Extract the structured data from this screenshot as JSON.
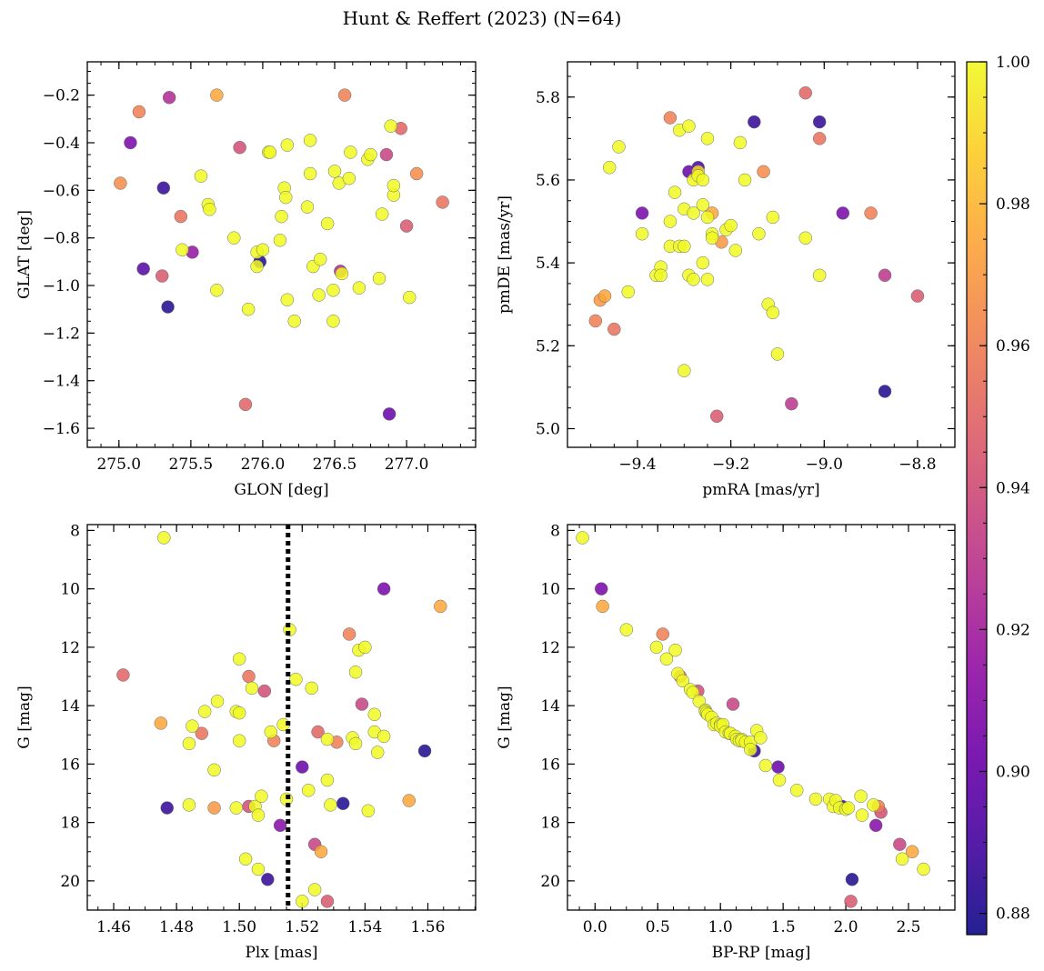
{
  "title": "Hunt & Reffert (2023) (N=64)",
  "colorbar": {
    "range": [
      0.877,
      1.0
    ],
    "ticks": [
      0.88,
      0.9,
      0.92,
      0.94,
      0.96,
      0.98,
      1.0
    ],
    "tick_labels": [
      "0.88",
      "0.90",
      "0.92",
      "0.94",
      "0.96",
      "0.98",
      "1.00"
    ],
    "colormap": "plasma"
  },
  "chart_data": [
    {
      "type": "scatter",
      "name": "sky",
      "xlabel": "GLON [deg]",
      "ylabel": "GLAT [deg]",
      "xlim": [
        274.78,
        277.48
      ],
      "ylim": [
        -1.68,
        -0.06
      ],
      "xticks": [
        275.0,
        275.5,
        276.0,
        276.5,
        277.0
      ],
      "xtick_labels": [
        "275.0",
        "275.5",
        "276.0",
        "276.5",
        "277.0"
      ],
      "yticks": [
        -1.6,
        -1.4,
        -1.2,
        -1.0,
        -0.8,
        -0.6,
        -0.4,
        -0.2
      ],
      "ytick_labels": [
        "−1.6",
        "−1.4",
        "−1.2",
        "−1.0",
        "−0.8",
        "−0.6",
        "−0.4",
        "−0.2"
      ],
      "x": [
        275.01,
        275.14,
        275.08,
        275.35,
        275.31,
        275.3,
        275.17,
        275.34,
        275.43,
        275.44,
        275.51,
        275.57,
        275.62,
        275.63,
        275.68,
        275.68,
        275.84,
        275.88,
        275.9,
        275.96,
        275.96,
        275.98,
        276.0,
        276.04,
        276.05,
        276.12,
        276.13,
        276.15,
        276.16,
        276.17,
        276.17,
        276.31,
        276.33,
        276.33,
        276.35,
        276.39,
        276.4,
        276.45,
        276.49,
        276.49,
        276.5,
        276.53,
        276.54,
        276.55,
        276.57,
        276.61,
        276.67,
        276.73,
        276.81,
        276.83,
        276.86,
        276.88,
        276.89,
        276.91,
        276.91,
        276.96,
        277.0,
        277.02,
        277.07,
        277.25,
        276.6,
        276.22,
        276.75,
        275.8
      ],
      "y": [
        -0.57,
        -0.27,
        -0.4,
        -0.21,
        -0.59,
        -0.96,
        -0.93,
        -1.09,
        -0.71,
        -0.85,
        -0.86,
        -0.54,
        -0.66,
        -0.68,
        -0.2,
        -1.02,
        -0.42,
        -1.5,
        -1.1,
        -0.92,
        -0.86,
        -0.9,
        -0.85,
        -0.44,
        -0.44,
        -0.81,
        -0.71,
        -0.59,
        -0.63,
        -0.41,
        -1.06,
        -0.67,
        -0.39,
        -0.53,
        -0.92,
        -1.04,
        -0.89,
        -0.74,
        -1.02,
        -1.15,
        -0.52,
        -0.57,
        -0.94,
        -0.95,
        -0.2,
        -0.44,
        -1.01,
        -0.47,
        -0.97,
        -0.7,
        -0.45,
        -1.54,
        -0.33,
        -0.62,
        -0.58,
        -0.34,
        -0.75,
        -1.05,
        -0.53,
        -0.65,
        -0.55,
        -1.15,
        -0.45,
        -0.8
      ],
      "color_value": [
        0.965,
        0.96,
        0.905,
        0.925,
        0.885,
        0.945,
        0.895,
        0.88,
        0.955,
        1.0,
        0.915,
        1.0,
        1.0,
        1.0,
        0.975,
        1.0,
        0.94,
        0.95,
        1.0,
        1.0,
        1.0,
        0.88,
        1.0,
        1.0,
        1.0,
        1.0,
        1.0,
        1.0,
        1.0,
        1.0,
        1.0,
        1.0,
        1.0,
        1.0,
        1.0,
        1.0,
        1.0,
        1.0,
        1.0,
        1.0,
        1.0,
        1.0,
        0.925,
        1.0,
        0.96,
        1.0,
        1.0,
        1.0,
        1.0,
        1.0,
        0.935,
        0.9,
        1.0,
        1.0,
        1.0,
        0.95,
        0.945,
        1.0,
        0.965,
        0.955,
        1.0,
        1.0,
        1.0,
        1.0
      ]
    },
    {
      "type": "scatter",
      "name": "proper-motion",
      "xlabel": "pmRA [mas/yr]",
      "ylabel": "pmDE [mas/yr]",
      "xlim": [
        -9.55,
        -8.72
      ],
      "ylim": [
        4.955,
        5.885
      ],
      "xticks": [
        -9.4,
        -9.2,
        -9.0,
        -8.8
      ],
      "xtick_labels": [
        "−9.4",
        "−9.2",
        "−9.0",
        "−8.8"
      ],
      "yticks": [
        5.0,
        5.2,
        5.4,
        5.6,
        5.8
      ],
      "ytick_labels": [
        "5.0",
        "5.2",
        "5.4",
        "5.6",
        "5.8"
      ],
      "x": [
        -9.49,
        -9.48,
        -9.47,
        -9.46,
        -9.45,
        -9.44,
        -9.42,
        -9.39,
        -9.39,
        -9.36,
        -9.35,
        -9.35,
        -9.33,
        -9.33,
        -9.33,
        -9.32,
        -9.31,
        -9.31,
        -9.3,
        -9.3,
        -9.3,
        -9.29,
        -9.29,
        -9.29,
        -9.28,
        -9.28,
        -9.28,
        -9.27,
        -9.27,
        -9.26,
        -9.26,
        -9.26,
        -9.25,
        -9.25,
        -9.25,
        -9.24,
        -9.24,
        -9.23,
        -9.22,
        -9.21,
        -9.2,
        -9.19,
        -9.18,
        -9.17,
        -9.15,
        -9.14,
        -9.13,
        -9.12,
        -9.11,
        -9.11,
        -9.1,
        -9.07,
        -9.04,
        -9.04,
        -9.01,
        -9.01,
        -9.01,
        -8.96,
        -8.9,
        -8.87,
        -8.87,
        -8.8,
        -9.24,
        -9.27
      ],
      "y": [
        5.26,
        5.31,
        5.32,
        5.63,
        5.24,
        5.68,
        5.33,
        5.47,
        5.52,
        5.37,
        5.39,
        5.37,
        5.5,
        5.75,
        5.44,
        5.57,
        5.72,
        5.44,
        5.44,
        5.53,
        5.14,
        5.73,
        5.37,
        5.62,
        5.6,
        5.36,
        5.52,
        5.63,
        5.61,
        5.6,
        5.54,
        5.4,
        5.51,
        5.36,
        5.7,
        5.47,
        5.52,
        5.03,
        5.45,
        5.48,
        5.49,
        5.43,
        5.69,
        5.6,
        5.74,
        5.47,
        5.62,
        5.3,
        5.51,
        5.28,
        5.18,
        5.06,
        5.46,
        5.81,
        5.74,
        5.7,
        5.37,
        5.52,
        5.52,
        5.37,
        5.09,
        5.32,
        5.46,
        5.62
      ],
      "color_value": [
        0.96,
        0.97,
        0.975,
        1.0,
        0.955,
        1.0,
        1.0,
        1.0,
        0.905,
        1.0,
        1.0,
        1.0,
        1.0,
        0.96,
        1.0,
        1.0,
        1.0,
        1.0,
        1.0,
        1.0,
        1.0,
        1.0,
        1.0,
        0.9,
        1.0,
        1.0,
        1.0,
        0.89,
        1.0,
        1.0,
        1.0,
        1.0,
        1.0,
        1.0,
        1.0,
        1.0,
        0.975,
        0.945,
        0.97,
        1.0,
        1.0,
        1.0,
        1.0,
        1.0,
        0.885,
        1.0,
        0.965,
        1.0,
        1.0,
        1.0,
        1.0,
        0.93,
        1.0,
        0.95,
        0.885,
        0.955,
        1.0,
        0.905,
        0.96,
        0.93,
        0.88,
        0.945,
        1.0,
        0.99
      ]
    },
    {
      "type": "scatter",
      "name": "parallax-magnitude",
      "xlabel": "Plx [mas]",
      "ylabel": "G [mag]",
      "xlim": [
        1.4516,
        1.5752
      ],
      "ylim": [
        21.0,
        7.8
      ],
      "y_inverted": true,
      "xticks": [
        1.46,
        1.48,
        1.5,
        1.52,
        1.54,
        1.56
      ],
      "xtick_labels": [
        "1.46",
        "1.48",
        "1.50",
        "1.52",
        "1.54",
        "1.56"
      ],
      "yticks": [
        8,
        10,
        12,
        14,
        16,
        18,
        20
      ],
      "ytick_labels": [
        "8",
        "10",
        "12",
        "14",
        "16",
        "18",
        "20"
      ],
      "vline": {
        "x": 1.5155,
        "style": "dotted",
        "color": "#000000"
      },
      "x": [
        1.463,
        1.475,
        1.476,
        1.477,
        1.484,
        1.484,
        1.485,
        1.488,
        1.489,
        1.492,
        1.492,
        1.493,
        1.499,
        1.499,
        1.5,
        1.5,
        1.5,
        1.502,
        1.503,
        1.503,
        1.504,
        1.505,
        1.506,
        1.506,
        1.507,
        1.508,
        1.509,
        1.51,
        1.511,
        1.513,
        1.514,
        1.515,
        1.516,
        1.518,
        1.52,
        1.52,
        1.522,
        1.523,
        1.524,
        1.524,
        1.525,
        1.526,
        1.528,
        1.528,
        1.528,
        1.529,
        1.531,
        1.533,
        1.535,
        1.536,
        1.537,
        1.537,
        1.538,
        1.539,
        1.54,
        1.541,
        1.543,
        1.543,
        1.544,
        1.546,
        1.546,
        1.554,
        1.559,
        1.564
      ],
      "y": [
        12.95,
        14.6,
        8.25,
        17.5,
        15.3,
        17.4,
        14.7,
        14.95,
        14.2,
        16.2,
        17.5,
        13.85,
        17.5,
        14.2,
        15.2,
        12.4,
        14.25,
        19.25,
        13.0,
        17.45,
        13.4,
        17.45,
        17.75,
        19.6,
        17.1,
        13.5,
        19.95,
        14.9,
        15.2,
        18.1,
        14.65,
        17.2,
        11.4,
        13.1,
        16.1,
        20.7,
        16.9,
        13.4,
        18.75,
        20.3,
        14.9,
        19.0,
        15.15,
        16.55,
        20.7,
        17.4,
        15.25,
        17.35,
        11.55,
        15.1,
        12.85,
        15.3,
        12.1,
        13.95,
        12.0,
        17.6,
        14.9,
        14.3,
        15.6,
        10.0,
        15.05,
        17.25,
        15.55,
        10.6
      ],
      "color_value": [
        0.95,
        0.975,
        1.0,
        0.885,
        1.0,
        1.0,
        1.0,
        0.955,
        1.0,
        1.0,
        0.97,
        1.0,
        1.0,
        1.0,
        1.0,
        1.0,
        1.0,
        1.0,
        0.955,
        0.94,
        1.0,
        1.0,
        1.0,
        1.0,
        1.0,
        0.94,
        0.885,
        1.0,
        0.96,
        0.91,
        1.0,
        1.0,
        1.0,
        1.0,
        0.9,
        1.0,
        1.0,
        1.0,
        0.935,
        1.0,
        0.95,
        0.975,
        1.0,
        1.0,
        0.945,
        1.0,
        0.96,
        0.88,
        0.96,
        1.0,
        1.0,
        1.0,
        1.0,
        0.935,
        1.0,
        1.0,
        1.0,
        1.0,
        1.0,
        0.905,
        1.0,
        0.975,
        0.88,
        0.975
      ]
    },
    {
      "type": "scatter",
      "name": "colour-magnitude",
      "xlabel": "BP-RP [mag]",
      "ylabel": "G [mag]",
      "xlim": [
        -0.22,
        2.87
      ],
      "ylim": [
        21.0,
        7.8
      ],
      "y_inverted": true,
      "xticks": [
        0.0,
        0.5,
        1.0,
        1.5,
        2.0,
        2.5
      ],
      "xtick_labels": [
        "0.0",
        "0.5",
        "1.0",
        "1.5",
        "2.0",
        "2.5"
      ],
      "yticks": [
        8,
        10,
        12,
        14,
        16,
        18,
        20
      ],
      "ytick_labels": [
        "8",
        "10",
        "12",
        "14",
        "16",
        "18",
        "20"
      ],
      "x": [
        -0.1,
        0.05,
        0.06,
        0.25,
        0.49,
        0.54,
        0.57,
        0.64,
        0.66,
        0.68,
        0.7,
        0.76,
        0.78,
        0.82,
        0.83,
        0.88,
        0.88,
        0.89,
        0.9,
        0.93,
        0.95,
        0.97,
        1.0,
        1.0,
        1.02,
        1.04,
        1.07,
        1.08,
        1.1,
        1.12,
        1.13,
        1.15,
        1.17,
        1.17,
        1.2,
        1.24,
        1.24,
        1.27,
        1.29,
        1.32,
        1.36,
        1.46,
        1.47,
        1.61,
        1.76,
        1.87,
        1.9,
        1.92,
        1.95,
        1.97,
        2.0,
        2.02,
        2.04,
        2.05,
        2.12,
        2.13,
        2.22,
        2.24,
        2.26,
        2.28,
        2.43,
        2.45,
        2.53,
        2.62
      ],
      "y": [
        8.25,
        10.0,
        10.6,
        11.4,
        12.0,
        11.55,
        12.4,
        12.1,
        12.9,
        13.0,
        13.15,
        13.45,
        13.55,
        13.5,
        13.85,
        14.15,
        14.2,
        14.25,
        14.3,
        14.4,
        14.65,
        14.6,
        14.65,
        14.7,
        14.65,
        14.9,
        14.95,
        14.95,
        13.95,
        15.05,
        15.15,
        15.2,
        15.15,
        15.2,
        15.25,
        15.25,
        15.5,
        15.55,
        14.85,
        15.1,
        16.05,
        16.1,
        16.55,
        16.9,
        17.2,
        17.2,
        17.45,
        17.25,
        17.5,
        17.45,
        17.55,
        17.5,
        20.7,
        19.95,
        17.1,
        17.75,
        17.4,
        18.1,
        17.45,
        17.65,
        18.75,
        19.25,
        19.0,
        19.6
      ],
      "color_value": [
        1.0,
        0.905,
        0.975,
        1.0,
        1.0,
        0.96,
        1.0,
        1.0,
        1.0,
        0.955,
        1.0,
        1.0,
        1.0,
        0.94,
        1.0,
        1.0,
        1.0,
        1.0,
        1.0,
        1.0,
        1.0,
        1.0,
        1.0,
        1.0,
        1.0,
        1.0,
        1.0,
        1.0,
        0.935,
        1.0,
        1.0,
        1.0,
        1.0,
        1.0,
        1.0,
        1.0,
        1.0,
        0.885,
        1.0,
        1.0,
        1.0,
        0.9,
        1.0,
        1.0,
        1.0,
        1.0,
        1.0,
        1.0,
        1.0,
        0.885,
        1.0,
        1.0,
        0.945,
        0.88,
        1.0,
        1.0,
        1.0,
        0.91,
        0.96,
        0.94,
        0.935,
        1.0,
        0.975,
        1.0
      ]
    }
  ]
}
